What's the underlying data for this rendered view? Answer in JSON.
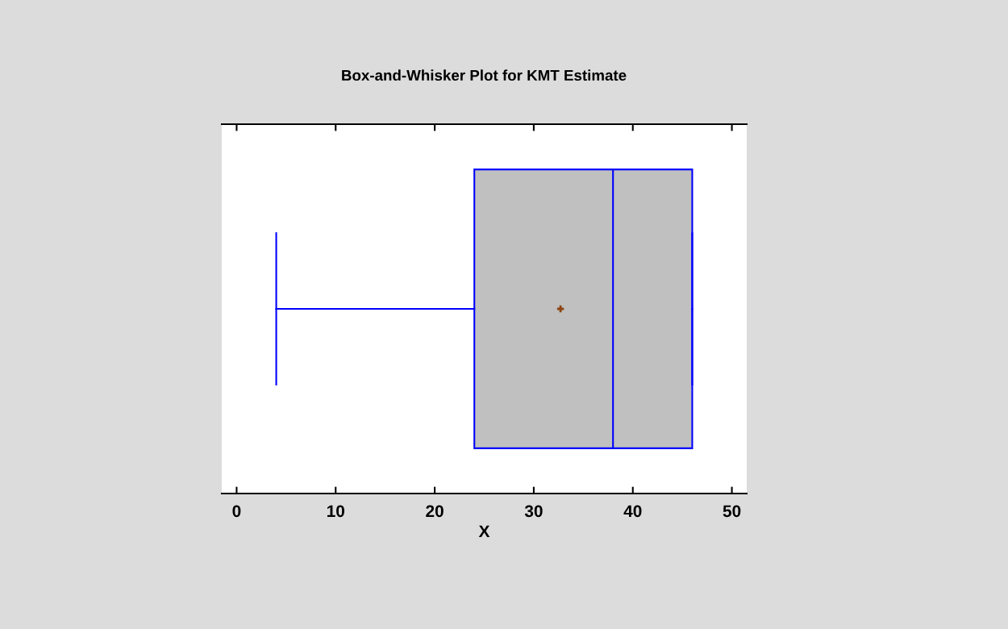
{
  "chart_data": {
    "type": "box",
    "title": "Box-and-Whisker Plot for KMT Estimate",
    "xlabel": "X",
    "orientation": "horizontal",
    "categories": [
      null
    ],
    "boxes": [
      {
        "low": 4,
        "q1": 24,
        "median": 38,
        "q3": 46,
        "high": 46,
        "mean": 32.7
      }
    ],
    "color": "#c0c0c0",
    "xlim": [
      -1.5,
      51.5
    ],
    "xticks": [
      0,
      10,
      20,
      30,
      40,
      50
    ],
    "grid": false
  }
}
